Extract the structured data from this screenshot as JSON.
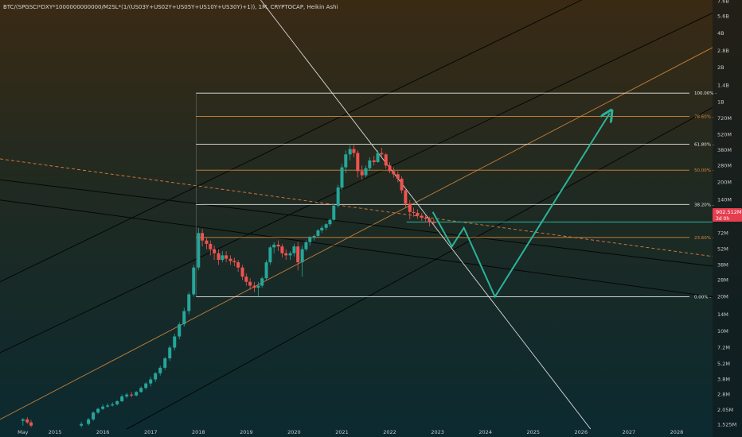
{
  "header": {
    "symbol_title": "BTC/(SPGSCI*DXY*1000000000000/M2SL*(1/(US03Y+US02Y+US05Y+US10Y+US30Y)+1)), 1M, CRYPTOCAP, Heikin Ashi"
  },
  "price_badge": {
    "value": "902.512M",
    "countdown": "3d 0h",
    "color": "#e53e4f"
  },
  "colors": {
    "bull": "#26a69a",
    "bear": "#ef5350",
    "fib_white": "#e8e8e8",
    "fib_orange": "#d6883a",
    "projection": "#2bb39a"
  },
  "chart_data": {
    "type": "candlestick",
    "title": "BTC/(SPGSCI*DXY*1000000000000/M2SL*(1/(US03Y+US02Y+US05Y+US10Y+US30Y)+1)), 1M, CRYPTOCAP, Heikin Ashi",
    "interval": "1M",
    "candle_style": "Heikin Ashi",
    "y_scale": "log",
    "y_ticks": [
      "7.6B",
      "5.6B",
      "4B",
      "2.8B",
      "2B",
      "1.4B",
      "1B",
      "720M",
      "520M",
      "380M",
      "280M",
      "200M",
      "140M",
      "100M",
      "72M",
      "52M",
      "38M",
      "28M",
      "20M",
      "14M",
      "10M",
      "7.2M",
      "5.2M",
      "3.8M",
      "2.8M",
      "2.05M",
      "1.525M"
    ],
    "y_tick_values": [
      7600,
      5600,
      4000,
      2800,
      2000,
      1400,
      1000,
      720,
      520,
      380,
      280,
      200,
      140,
      100,
      72,
      52,
      38,
      28,
      20,
      14,
      10,
      7.2,
      5.2,
      3.8,
      2.8,
      2.05,
      1.525
    ],
    "y_unit": "M",
    "x_ticks": [
      "May",
      "2015",
      "2016",
      "2017",
      "2018",
      "2019",
      "2020",
      "2021",
      "2022",
      "2023",
      "2024",
      "2025",
      "2026",
      "2027",
      "2028"
    ],
    "x_tick_values": [
      2014.33,
      2015,
      2016,
      2017,
      2018,
      2019,
      2020,
      2021,
      2022,
      2023,
      2024,
      2025,
      2026,
      2027,
      2028
    ],
    "xlim": [
      2013.85,
      2028.75
    ],
    "ylim": [
      1.4,
      7800
    ],
    "current_price": 902.512,
    "fib_levels": [
      {
        "label": "100.00%",
        "value": 1200,
        "color": "#e8e8e8"
      },
      {
        "label": "78.60%",
        "value": 750,
        "color": "#d6883a"
      },
      {
        "label": "61.80%",
        "value": 430,
        "color": "#e8e8e8"
      },
      {
        "label": "50.00%",
        "value": 255,
        "color": "#d6883a"
      },
      {
        "label": "38.20%",
        "value": 128,
        "color": "#e8e8e8"
      },
      {
        "label": "23.60%",
        "value": 66,
        "color": "#d6883a"
      },
      {
        "label": "0.00%",
        "value": 20,
        "color": "#e8e8e8"
      }
    ],
    "fib_x_start": 2017.95,
    "channel_lines": [
      {
        "color": "#000000",
        "x1": 2013.85,
        "y1": 6.5,
        "x2": 2028.75,
        "y2": 6000
      },
      {
        "color": "#000000",
        "x1": 2013.85,
        "y1": 27,
        "x2": 2028.75,
        "y2": 28000
      },
      {
        "color": "#000000",
        "x1": 2016.5,
        "y1": 1.4,
        "x2": 2028.75,
        "y2": 900
      },
      {
        "color": "#d6883a",
        "x1": 2013.85,
        "y1": 1.7,
        "x2": 2028.75,
        "y2": 3000
      },
      {
        "color": "#000000",
        "x1": 2013.85,
        "y1": 210,
        "x2": 2028.75,
        "y2": 37
      },
      {
        "color": "#000000",
        "x1": 2013.85,
        "y1": 140,
        "x2": 2028.75,
        "y2": 20
      }
    ],
    "dashed_trend": {
      "color": "#e07a3c",
      "x1": 2013.85,
      "y1": 320,
      "x2": 2028.75,
      "y2": 45
    },
    "descending_line": {
      "color": "#dcdcdc",
      "x1": 2019.3,
      "y1": 7800,
      "x2": 2026.2,
      "y2": 1.4
    },
    "horizontal_ray": {
      "color": "#2bb39a",
      "value": 90,
      "x1": 2022.35,
      "x2": 2028.75
    },
    "projection_path": [
      [
        2022.9,
        110
      ],
      [
        2023.3,
        55
      ],
      [
        2023.55,
        80
      ],
      [
        2024.2,
        20
      ],
      [
        2026.6,
        800
      ]
    ],
    "candles": [
      {
        "t": 2014.33,
        "o": 1.65,
        "h": 1.75,
        "l": 1.5,
        "c": 1.7
      },
      {
        "t": 2014.42,
        "o": 1.7,
        "h": 1.78,
        "l": 1.55,
        "c": 1.6
      },
      {
        "t": 2014.5,
        "o": 1.6,
        "h": 1.68,
        "l": 1.45,
        "c": 1.5
      },
      {
        "t": 2015.55,
        "o": 1.5,
        "h": 1.62,
        "l": 1.45,
        "c": 1.55
      },
      {
        "t": 2015.7,
        "o": 1.55,
        "h": 1.75,
        "l": 1.5,
        "c": 1.7
      },
      {
        "t": 2015.8,
        "o": 1.7,
        "h": 2.0,
        "l": 1.65,
        "c": 1.95
      },
      {
        "t": 2015.9,
        "o": 1.95,
        "h": 2.15,
        "l": 1.9,
        "c": 2.1
      },
      {
        "t": 2016.0,
        "o": 2.1,
        "h": 2.3,
        "l": 2.05,
        "c": 2.2
      },
      {
        "t": 2016.1,
        "o": 2.2,
        "h": 2.35,
        "l": 2.15,
        "c": 2.25
      },
      {
        "t": 2016.2,
        "o": 2.25,
        "h": 2.4,
        "l": 2.2,
        "c": 2.3
      },
      {
        "t": 2016.3,
        "o": 2.3,
        "h": 2.5,
        "l": 2.25,
        "c": 2.45
      },
      {
        "t": 2016.4,
        "o": 2.45,
        "h": 2.8,
        "l": 2.4,
        "c": 2.7
      },
      {
        "t": 2016.5,
        "o": 2.7,
        "h": 2.9,
        "l": 2.6,
        "c": 2.8
      },
      {
        "t": 2016.6,
        "o": 2.8,
        "h": 2.95,
        "l": 2.65,
        "c": 2.75
      },
      {
        "t": 2016.7,
        "o": 2.75,
        "h": 3.0,
        "l": 2.7,
        "c": 2.95
      },
      {
        "t": 2016.8,
        "o": 2.95,
        "h": 3.3,
        "l": 2.9,
        "c": 3.2
      },
      {
        "t": 2016.9,
        "o": 3.2,
        "h": 3.6,
        "l": 3.1,
        "c": 3.5
      },
      {
        "t": 2017.0,
        "o": 3.5,
        "h": 4.0,
        "l": 3.3,
        "c": 3.8
      },
      {
        "t": 2017.1,
        "o": 3.8,
        "h": 4.4,
        "l": 3.6,
        "c": 4.3
      },
      {
        "t": 2017.2,
        "o": 4.3,
        "h": 5.0,
        "l": 4.1,
        "c": 4.8
      },
      {
        "t": 2017.3,
        "o": 4.8,
        "h": 6.0,
        "l": 4.6,
        "c": 5.8
      },
      {
        "t": 2017.4,
        "o": 5.8,
        "h": 7.5,
        "l": 5.5,
        "c": 7.2
      },
      {
        "t": 2017.5,
        "o": 7.2,
        "h": 9.5,
        "l": 6.8,
        "c": 9.0
      },
      {
        "t": 2017.6,
        "o": 9.0,
        "h": 12,
        "l": 8.5,
        "c": 11.5
      },
      {
        "t": 2017.7,
        "o": 11.5,
        "h": 16,
        "l": 11,
        "c": 15
      },
      {
        "t": 2017.8,
        "o": 15,
        "h": 22,
        "l": 14,
        "c": 21
      },
      {
        "t": 2017.9,
        "o": 21,
        "h": 38,
        "l": 20,
        "c": 36
      },
      {
        "t": 2018.0,
        "o": 36,
        "h": 80,
        "l": 34,
        "c": 72
      },
      {
        "t": 2018.08,
        "o": 72,
        "h": 78,
        "l": 55,
        "c": 62
      },
      {
        "t": 2018.17,
        "o": 62,
        "h": 66,
        "l": 52,
        "c": 58
      },
      {
        "t": 2018.25,
        "o": 58,
        "h": 62,
        "l": 46,
        "c": 52
      },
      {
        "t": 2018.33,
        "o": 52,
        "h": 56,
        "l": 42,
        "c": 48
      },
      {
        "t": 2018.42,
        "o": 48,
        "h": 52,
        "l": 38,
        "c": 42
      },
      {
        "t": 2018.5,
        "o": 42,
        "h": 50,
        "l": 40,
        "c": 46
      },
      {
        "t": 2018.58,
        "o": 46,
        "h": 50,
        "l": 40,
        "c": 43
      },
      {
        "t": 2018.67,
        "o": 43,
        "h": 46,
        "l": 38,
        "c": 41
      },
      {
        "t": 2018.75,
        "o": 41,
        "h": 44,
        "l": 37,
        "c": 40
      },
      {
        "t": 2018.83,
        "o": 40,
        "h": 42,
        "l": 33,
        "c": 36
      },
      {
        "t": 2018.92,
        "o": 36,
        "h": 38,
        "l": 28,
        "c": 30
      },
      {
        "t": 2019.0,
        "o": 30,
        "h": 32,
        "l": 25,
        "c": 27
      },
      {
        "t": 2019.08,
        "o": 27,
        "h": 29,
        "l": 23,
        "c": 25
      },
      {
        "t": 2019.17,
        "o": 25,
        "h": 27,
        "l": 22,
        "c": 24
      },
      {
        "t": 2019.25,
        "o": 24,
        "h": 27,
        "l": 20,
        "c": 25
      },
      {
        "t": 2019.33,
        "o": 25,
        "h": 30,
        "l": 24,
        "c": 29
      },
      {
        "t": 2019.42,
        "o": 29,
        "h": 42,
        "l": 28,
        "c": 40
      },
      {
        "t": 2019.5,
        "o": 40,
        "h": 56,
        "l": 38,
        "c": 54
      },
      {
        "t": 2019.58,
        "o": 54,
        "h": 60,
        "l": 48,
        "c": 57
      },
      {
        "t": 2019.67,
        "o": 57,
        "h": 62,
        "l": 50,
        "c": 55
      },
      {
        "t": 2019.75,
        "o": 55,
        "h": 58,
        "l": 44,
        "c": 48
      },
      {
        "t": 2019.83,
        "o": 48,
        "h": 52,
        "l": 42,
        "c": 46
      },
      {
        "t": 2019.92,
        "o": 46,
        "h": 50,
        "l": 42,
        "c": 48
      },
      {
        "t": 2020.0,
        "o": 48,
        "h": 58,
        "l": 45,
        "c": 55
      },
      {
        "t": 2020.08,
        "o": 55,
        "h": 60,
        "l": 34,
        "c": 40
      },
      {
        "t": 2020.17,
        "o": 40,
        "h": 56,
        "l": 30,
        "c": 52
      },
      {
        "t": 2020.25,
        "o": 52,
        "h": 62,
        "l": 50,
        "c": 60
      },
      {
        "t": 2020.33,
        "o": 60,
        "h": 68,
        "l": 56,
        "c": 66
      },
      {
        "t": 2020.42,
        "o": 66,
        "h": 70,
        "l": 62,
        "c": 68
      },
      {
        "t": 2020.5,
        "o": 68,
        "h": 78,
        "l": 66,
        "c": 76
      },
      {
        "t": 2020.58,
        "o": 76,
        "h": 84,
        "l": 72,
        "c": 80
      },
      {
        "t": 2020.67,
        "o": 80,
        "h": 88,
        "l": 76,
        "c": 86
      },
      {
        "t": 2020.75,
        "o": 86,
        "h": 96,
        "l": 82,
        "c": 94
      },
      {
        "t": 2020.83,
        "o": 94,
        "h": 130,
        "l": 92,
        "c": 125
      },
      {
        "t": 2020.92,
        "o": 125,
        "h": 190,
        "l": 120,
        "c": 180
      },
      {
        "t": 2021.0,
        "o": 180,
        "h": 290,
        "l": 170,
        "c": 270
      },
      {
        "t": 2021.08,
        "o": 270,
        "h": 380,
        "l": 240,
        "c": 350
      },
      {
        "t": 2021.17,
        "o": 350,
        "h": 420,
        "l": 310,
        "c": 390
      },
      {
        "t": 2021.25,
        "o": 390,
        "h": 430,
        "l": 330,
        "c": 360
      },
      {
        "t": 2021.33,
        "o": 360,
        "h": 380,
        "l": 220,
        "c": 250
      },
      {
        "t": 2021.42,
        "o": 250,
        "h": 280,
        "l": 210,
        "c": 230
      },
      {
        "t": 2021.5,
        "o": 230,
        "h": 280,
        "l": 220,
        "c": 265
      },
      {
        "t": 2021.58,
        "o": 265,
        "h": 330,
        "l": 255,
        "c": 310
      },
      {
        "t": 2021.67,
        "o": 310,
        "h": 340,
        "l": 280,
        "c": 300
      },
      {
        "t": 2021.75,
        "o": 300,
        "h": 380,
        "l": 295,
        "c": 360
      },
      {
        "t": 2021.83,
        "o": 360,
        "h": 400,
        "l": 330,
        "c": 350
      },
      {
        "t": 2021.92,
        "o": 350,
        "h": 360,
        "l": 260,
        "c": 280
      },
      {
        "t": 2022.0,
        "o": 280,
        "h": 300,
        "l": 240,
        "c": 250
      },
      {
        "t": 2022.08,
        "o": 250,
        "h": 270,
        "l": 220,
        "c": 235
      },
      {
        "t": 2022.17,
        "o": 235,
        "h": 250,
        "l": 200,
        "c": 215
      },
      {
        "t": 2022.25,
        "o": 215,
        "h": 225,
        "l": 160,
        "c": 170
      },
      {
        "t": 2022.33,
        "o": 170,
        "h": 180,
        "l": 120,
        "c": 130
      },
      {
        "t": 2022.42,
        "o": 130,
        "h": 140,
        "l": 95,
        "c": 110
      },
      {
        "t": 2022.5,
        "o": 110,
        "h": 120,
        "l": 100,
        "c": 108
      },
      {
        "t": 2022.58,
        "o": 108,
        "h": 116,
        "l": 96,
        "c": 102
      },
      {
        "t": 2022.67,
        "o": 102,
        "h": 108,
        "l": 92,
        "c": 98
      },
      {
        "t": 2022.75,
        "o": 98,
        "h": 104,
        "l": 90,
        "c": 96
      },
      {
        "t": 2022.83,
        "o": 96,
        "h": 100,
        "l": 82,
        "c": 90
      },
      {
        "t": 2022.92,
        "o": 90,
        "h": 95,
        "l": 84,
        "c": 88
      }
    ]
  }
}
